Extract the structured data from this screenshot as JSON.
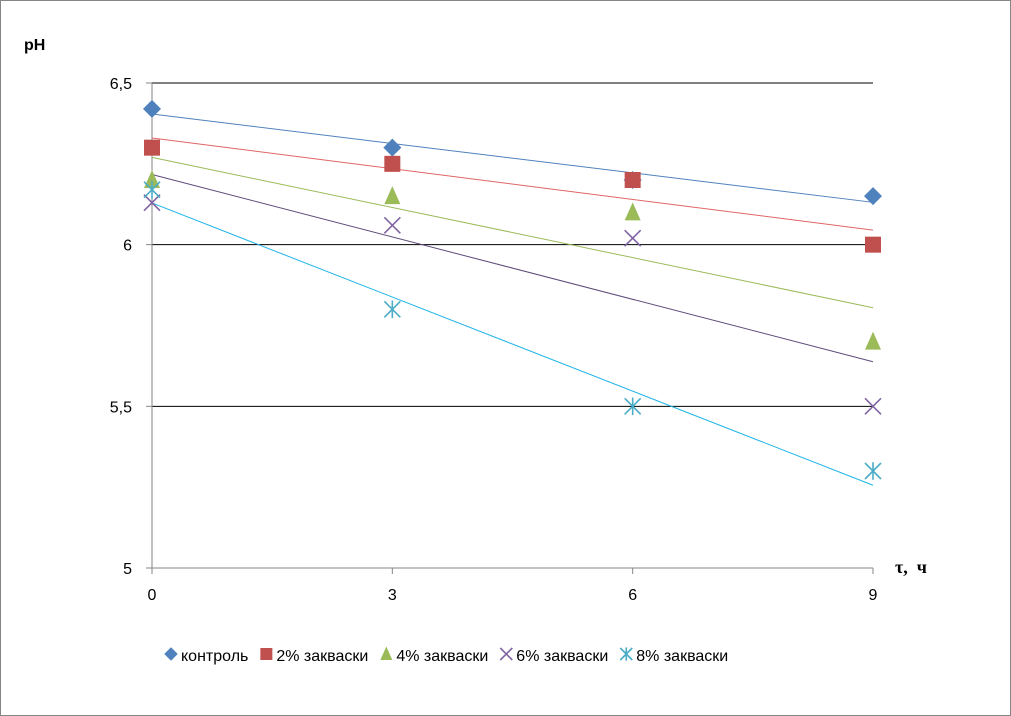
{
  "chart_data": {
    "type": "scatter",
    "title": "",
    "ylabel": "pH",
    "xlabel": "τ,  ч",
    "xlim": [
      0,
      9
    ],
    "ylim": [
      5,
      6.5
    ],
    "x_ticks": [
      "0",
      "3",
      "6",
      "9"
    ],
    "y_ticks": [
      "5",
      "5,5",
      "6",
      "6,5"
    ],
    "grid": "horizontal major",
    "legend_position": "bottom",
    "trendlines": "linear",
    "x": [
      0,
      3,
      6,
      9
    ],
    "series": [
      {
        "name": "контроль",
        "marker": "diamond",
        "color": "#4F81BD",
        "trend_color": "#4F81BD",
        "values": [
          6.42,
          6.3,
          6.2,
          6.15
        ]
      },
      {
        "name": "2% закваски",
        "marker": "square",
        "color": "#C0504D",
        "trend_color": "#E06666",
        "values": [
          6.3,
          6.25,
          6.2,
          6.0
        ]
      },
      {
        "name": "4% закваски",
        "marker": "triangle",
        "color": "#9BBB59",
        "trend_color": "#9BBB59",
        "values": [
          6.2,
          6.15,
          6.1,
          5.7
        ]
      },
      {
        "name": "6% закваски",
        "marker": "x",
        "color": "#8064A2",
        "trend_color": "#5F4B7A",
        "values": [
          6.13,
          6.06,
          6.02,
          5.5
        ]
      },
      {
        "name": "8% закваски",
        "marker": "star",
        "color": "#4BACC6",
        "trend_color": "#1EB4E6",
        "values": [
          6.17,
          5.8,
          5.5,
          5.3
        ]
      }
    ]
  }
}
